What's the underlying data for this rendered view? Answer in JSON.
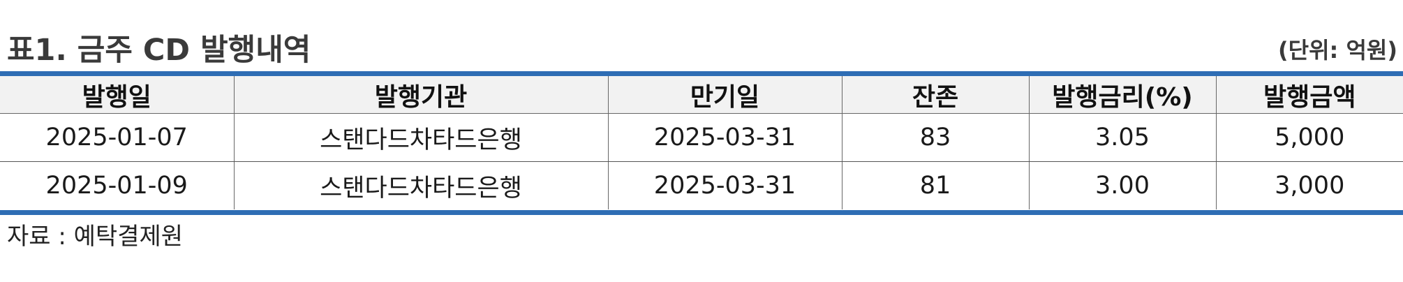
{
  "title": "표1. 금주 CD 발행내역",
  "unit": "(단위: 억원)",
  "table": {
    "headers": [
      "발행일",
      "발행기관",
      "만기일",
      "잔존",
      "발행금리(%)",
      "발행금액"
    ],
    "rows": [
      [
        "2025-01-07",
        "스탠다드차타드은행",
        "2025-03-31",
        "83",
        "3.05",
        "5,000"
      ],
      [
        "2025-01-09",
        "스탠다드차타드은행",
        "2025-03-31",
        "81",
        "3.00",
        "3,000"
      ]
    ]
  },
  "source": "자료 : 예탁결제원",
  "colors": {
    "rule": "#2e6db4",
    "header_bg": "#f2f2f2",
    "title_text": "#3a3a3a"
  }
}
